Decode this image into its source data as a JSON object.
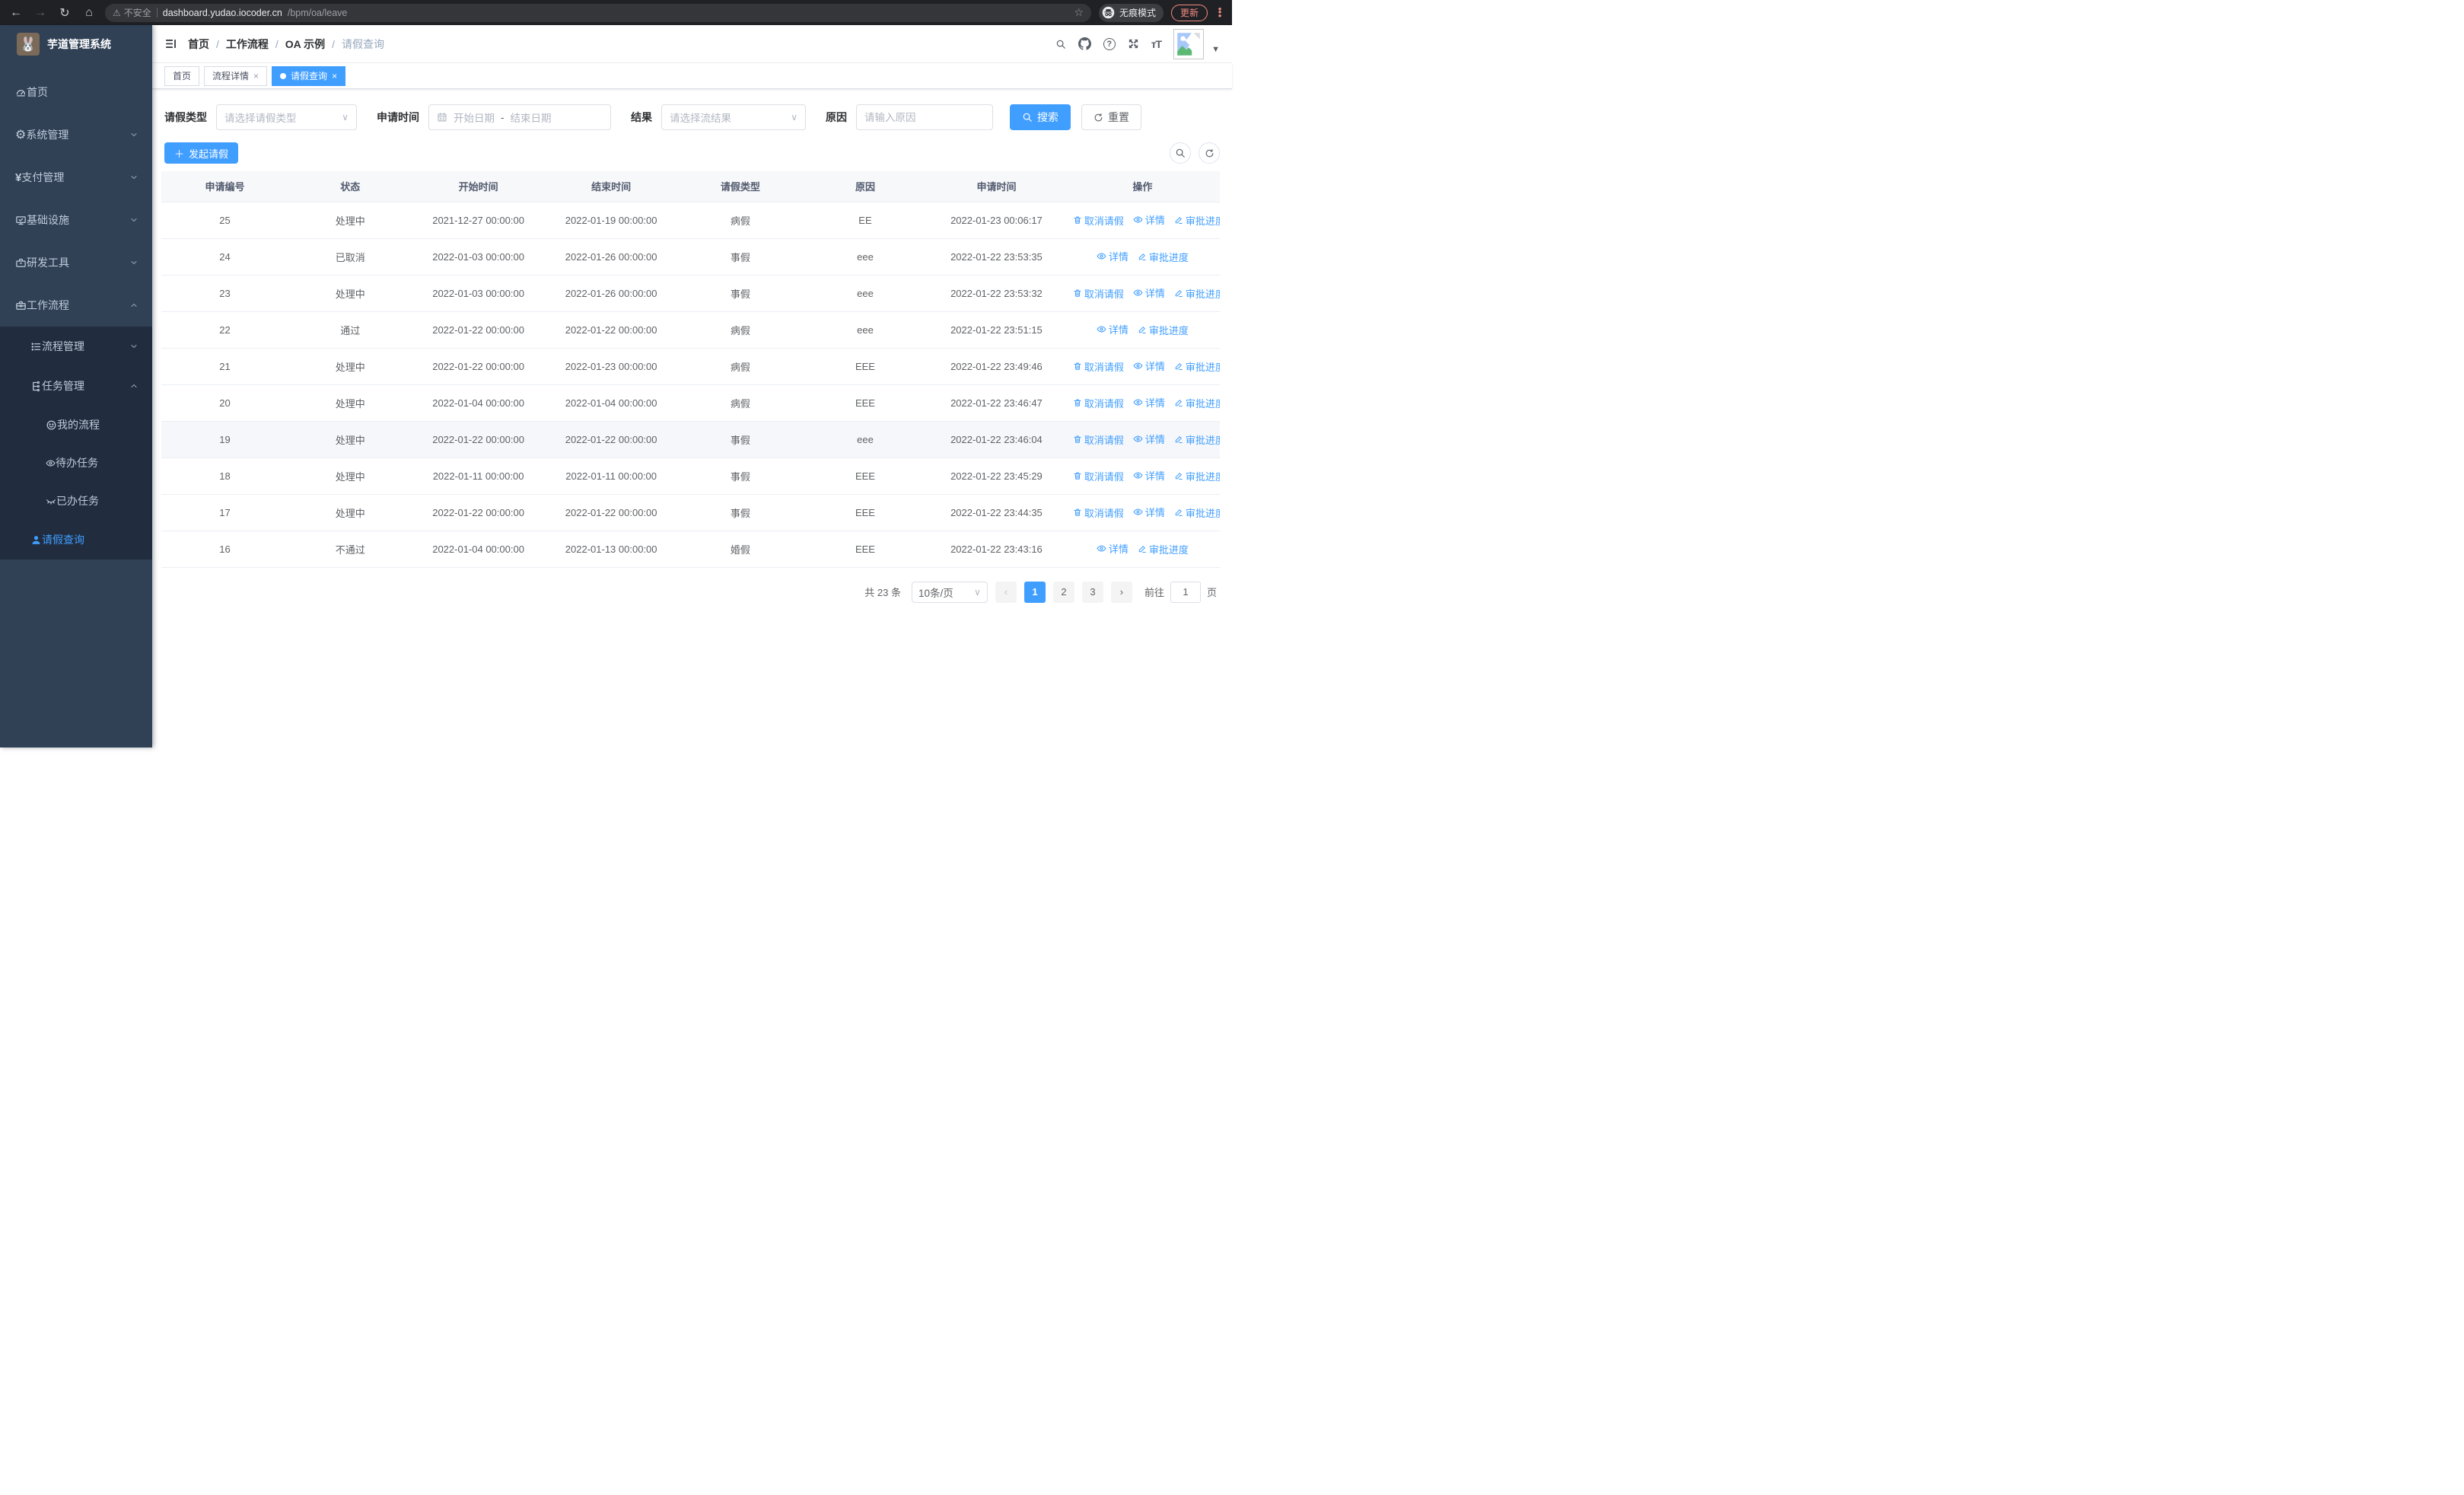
{
  "colors": {
    "primary": "#409eff",
    "update_accent": "#f28b82",
    "sidebar_bg": "#304156",
    "submenu_bg": "#212c3e",
    "active_tab_bg": "#409eff"
  },
  "browser": {
    "security_label": "不安全",
    "url_host": "dashboard.yudao.iocoder.cn",
    "url_path": "/bpm/oa/leave",
    "incognito_label": "无痕模式",
    "update_label": "更新"
  },
  "sidebar": {
    "title": "芋道管理系统",
    "items": [
      {
        "name": "home",
        "label": "首页",
        "icon": "dashboard-icon",
        "level": 1,
        "chevron": "",
        "sub": false,
        "active": false
      },
      {
        "name": "system-management",
        "label": "系统管理",
        "icon": "gear-icon",
        "level": 1,
        "chevron": "down",
        "sub": false,
        "active": false
      },
      {
        "name": "payment-management",
        "label": "支付管理",
        "icon": "yen-icon",
        "level": 1,
        "chevron": "down",
        "sub": false,
        "active": false
      },
      {
        "name": "infrastructure",
        "label": "基础设施",
        "icon": "monitor-icon",
        "level": 1,
        "chevron": "down",
        "sub": false,
        "active": false
      },
      {
        "name": "dev-tools",
        "label": "研发工具",
        "icon": "toolbox-icon",
        "level": 1,
        "chevron": "down",
        "sub": false,
        "active": false
      },
      {
        "name": "workflow",
        "label": "工作流程",
        "icon": "briefcase-icon",
        "level": 1,
        "chevron": "up",
        "sub": false,
        "active": false
      },
      {
        "name": "process-management",
        "label": "流程管理",
        "icon": "list-icon",
        "level": 2,
        "chevron": "down",
        "sub": true,
        "active": false
      },
      {
        "name": "task-management",
        "label": "任务管理",
        "icon": "flow-icon",
        "level": 2,
        "chevron": "up",
        "sub": true,
        "active": false
      },
      {
        "name": "my-process",
        "label": "我的流程",
        "icon": "robot-face-icon",
        "level": 3,
        "chevron": "",
        "sub": true,
        "active": false
      },
      {
        "name": "todo-tasks",
        "label": "待办任务",
        "icon": "eye-icon",
        "level": 3,
        "chevron": "",
        "sub": true,
        "active": false
      },
      {
        "name": "done-tasks",
        "label": "已办任务",
        "icon": "eye-closed-icon",
        "level": 3,
        "chevron": "",
        "sub": true,
        "active": false
      },
      {
        "name": "leave-query",
        "label": "请假查询",
        "icon": "user-icon",
        "level": 2,
        "chevron": "",
        "sub": true,
        "active": true
      }
    ]
  },
  "header": {
    "breadcrumb": [
      "首页",
      "工作流程",
      "OA 示例",
      "请假查询"
    ]
  },
  "tabs": [
    {
      "name": "home",
      "label": "首页",
      "closable": false,
      "active": false
    },
    {
      "name": "process-detail",
      "label": "流程详情",
      "closable": true,
      "active": false
    },
    {
      "name": "leave-query",
      "label": "请假查询",
      "closable": true,
      "active": true
    }
  ],
  "filters": {
    "leave_type_label": "请假类型",
    "leave_type_placeholder": "请选择请假类型",
    "apply_time_label": "申请时间",
    "start_date_placeholder": "开始日期",
    "date_separator": "-",
    "end_date_placeholder": "结束日期",
    "result_label": "结果",
    "result_placeholder": "请选择流结果",
    "reason_label": "原因",
    "reason_placeholder": "请输入原因",
    "search_label": "搜索",
    "reset_label": "重置"
  },
  "toolbar": {
    "create_label": "发起请假"
  },
  "table": {
    "columns": [
      "申请编号",
      "状态",
      "开始时间",
      "结束时间",
      "请假类型",
      "原因",
      "申请时间",
      "操作"
    ],
    "action_labels": {
      "cancel": "取消请假",
      "detail": "详情",
      "progress": "审批进度"
    },
    "rows": [
      {
        "id": "25",
        "status": "处理中",
        "start": "2021-12-27 00:00:00",
        "end": "2022-01-19 00:00:00",
        "type": "病假",
        "reason": "EE",
        "apply_time": "2022-01-23 00:06:17",
        "actions": [
          "cancel",
          "detail",
          "progress"
        ],
        "highlight": false
      },
      {
        "id": "24",
        "status": "已取消",
        "start": "2022-01-03 00:00:00",
        "end": "2022-01-26 00:00:00",
        "type": "事假",
        "reason": "eee",
        "apply_time": "2022-01-22 23:53:35",
        "actions": [
          "detail",
          "progress"
        ],
        "highlight": false
      },
      {
        "id": "23",
        "status": "处理中",
        "start": "2022-01-03 00:00:00",
        "end": "2022-01-26 00:00:00",
        "type": "事假",
        "reason": "eee",
        "apply_time": "2022-01-22 23:53:32",
        "actions": [
          "cancel",
          "detail",
          "progress"
        ],
        "highlight": false
      },
      {
        "id": "22",
        "status": "通过",
        "start": "2022-01-22 00:00:00",
        "end": "2022-01-22 00:00:00",
        "type": "病假",
        "reason": "eee",
        "apply_time": "2022-01-22 23:51:15",
        "actions": [
          "detail",
          "progress"
        ],
        "highlight": false
      },
      {
        "id": "21",
        "status": "处理中",
        "start": "2022-01-22 00:00:00",
        "end": "2022-01-23 00:00:00",
        "type": "病假",
        "reason": "EEE",
        "apply_time": "2022-01-22 23:49:46",
        "actions": [
          "cancel",
          "detail",
          "progress"
        ],
        "highlight": false
      },
      {
        "id": "20",
        "status": "处理中",
        "start": "2022-01-04 00:00:00",
        "end": "2022-01-04 00:00:00",
        "type": "病假",
        "reason": "EEE",
        "apply_time": "2022-01-22 23:46:47",
        "actions": [
          "cancel",
          "detail",
          "progress"
        ],
        "highlight": false
      },
      {
        "id": "19",
        "status": "处理中",
        "start": "2022-01-22 00:00:00",
        "end": "2022-01-22 00:00:00",
        "type": "事假",
        "reason": "eee",
        "apply_time": "2022-01-22 23:46:04",
        "actions": [
          "cancel",
          "detail",
          "progress"
        ],
        "highlight": true
      },
      {
        "id": "18",
        "status": "处理中",
        "start": "2022-01-11 00:00:00",
        "end": "2022-01-11 00:00:00",
        "type": "事假",
        "reason": "EEE",
        "apply_time": "2022-01-22 23:45:29",
        "actions": [
          "cancel",
          "detail",
          "progress"
        ],
        "highlight": false
      },
      {
        "id": "17",
        "status": "处理中",
        "start": "2022-01-22 00:00:00",
        "end": "2022-01-22 00:00:00",
        "type": "事假",
        "reason": "EEE",
        "apply_time": "2022-01-22 23:44:35",
        "actions": [
          "cancel",
          "detail",
          "progress"
        ],
        "highlight": false
      },
      {
        "id": "16",
        "status": "不通过",
        "start": "2022-01-04 00:00:00",
        "end": "2022-01-13 00:00:00",
        "type": "婚假",
        "reason": "EEE",
        "apply_time": "2022-01-22 23:43:16",
        "actions": [
          "detail",
          "progress"
        ],
        "highlight": false
      }
    ]
  },
  "pagination": {
    "total_label": "共 23 条",
    "page_size": "10条/页",
    "pages": [
      "1",
      "2",
      "3"
    ],
    "active_page": "1",
    "goto_label": "前往",
    "goto_value": "1",
    "page_suffix": "页"
  }
}
